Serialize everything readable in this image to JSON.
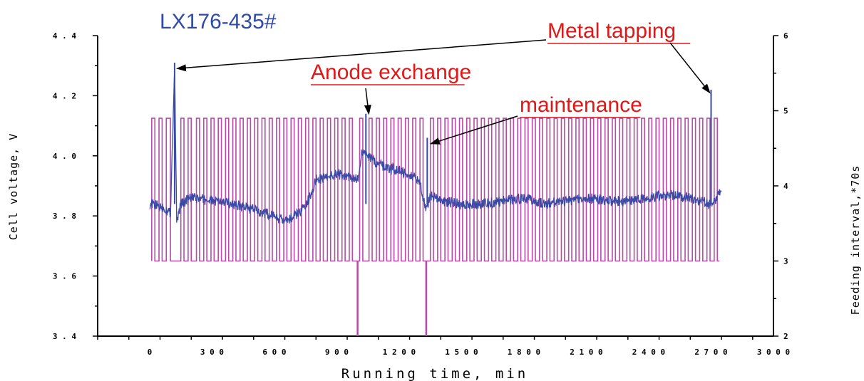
{
  "chart_data": {
    "type": "line",
    "title": "LX176-435#",
    "xlabel": "Running time, min",
    "ylabel": "Cell voltage, V",
    "y2label": "Feeding interval,*70s",
    "xlim": [
      -250,
      3000
    ],
    "ylim": [
      3.4,
      4.4
    ],
    "y2lim": [
      2,
      6
    ],
    "x_ticks": [
      "0",
      "300",
      "600",
      "900",
      "1200",
      "1500",
      "1800",
      "2100",
      "2400",
      "2700",
      "3000"
    ],
    "y_ticks": [
      "3.4",
      "3.6",
      "3.8",
      "4.0",
      "4.2",
      "4.4"
    ],
    "y2_ticks": [
      "2",
      "3",
      "4",
      "5",
      "6"
    ],
    "colors": {
      "voltage": "#3a4aa6",
      "feeding": "#b84aa8",
      "annotation": "#e01818",
      "title": "#2f4aa8"
    },
    "series": [
      {
        "name": "Cell voltage",
        "axis": "left",
        "x": [
          0,
          60,
          100,
          120,
          130,
          150,
          200,
          300,
          400,
          500,
          600,
          650,
          700,
          750,
          800,
          850,
          900,
          950,
          1000,
          1020,
          1050,
          1080,
          1100,
          1150,
          1200,
          1250,
          1300,
          1330,
          1350,
          1400,
          1500,
          1600,
          1700,
          1800,
          1900,
          2000,
          2100,
          2200,
          2300,
          2400,
          2500,
          2600,
          2700,
          2750
        ],
        "y": [
          3.84,
          3.83,
          3.81,
          4.3,
          3.78,
          3.84,
          3.86,
          3.85,
          3.84,
          3.82,
          3.8,
          3.78,
          3.8,
          3.83,
          3.92,
          3.93,
          3.94,
          3.93,
          3.92,
          4.01,
          4.0,
          3.98,
          3.97,
          3.96,
          3.95,
          3.94,
          3.91,
          3.82,
          3.87,
          3.85,
          3.84,
          3.84,
          3.85,
          3.86,
          3.84,
          3.85,
          3.86,
          3.85,
          3.85,
          3.86,
          3.87,
          3.86,
          3.84,
          3.88
        ]
      },
      {
        "name": "Feeding interval",
        "axis": "right",
        "low": 3.0,
        "high": 4.9,
        "switch_times": [
          10,
          25,
          45,
          60,
          80,
          100,
          150,
          165,
          185,
          200,
          225,
          240,
          260,
          275,
          295,
          310,
          330,
          345,
          365,
          380,
          400,
          415,
          435,
          450,
          470,
          485,
          505,
          520,
          540,
          555,
          575,
          590,
          610,
          625,
          645,
          660,
          680,
          695,
          715,
          730,
          750,
          765,
          785,
          800,
          820,
          835,
          855,
          870,
          890,
          905,
          925,
          940,
          960,
          975,
          1010,
          1025,
          1055,
          1070,
          1090,
          1105,
          1125,
          1140,
          1160,
          1175,
          1195,
          1210,
          1230,
          1245,
          1265,
          1280,
          1300,
          1315,
          1350,
          1365,
          1385,
          1400,
          1420,
          1435,
          1455,
          1470,
          1490,
          1505,
          1525,
          1540,
          1560,
          1575,
          1595,
          1610,
          1630,
          1645,
          1665,
          1680,
          1700,
          1715,
          1735,
          1750,
          1770,
          1785,
          1805,
          1820,
          1840,
          1855,
          1875,
          1890,
          1910,
          1925,
          1945,
          1960,
          1980,
          1995,
          2015,
          2030,
          2050,
          2065,
          2085,
          2100,
          2120,
          2135,
          2155,
          2170,
          2190,
          2205,
          2225,
          2240,
          2260,
          2275,
          2295,
          2310,
          2330,
          2345,
          2365,
          2380,
          2400,
          2415,
          2435,
          2450,
          2470,
          2485,
          2505,
          2520,
          2540,
          2555,
          2575,
          2590,
          2610,
          2625,
          2645,
          2660,
          2680,
          2695,
          2715,
          2730
        ],
        "dips": [
          {
            "x": 1000,
            "y": 2.0
          },
          {
            "x": 1330,
            "y": 2.0
          }
        ]
      }
    ],
    "annotations": [
      {
        "text": "Metal tapping",
        "targets": [
          {
            "x": 120,
            "y": 4.3
          },
          {
            "x": 2700,
            "y": 4.22
          }
        ]
      },
      {
        "text": "Anode exchange",
        "targets": [
          {
            "x": 1040,
            "y": 4.15
          }
        ]
      },
      {
        "text": "maintenance",
        "targets": [
          {
            "x": 1340,
            "y": 4.05
          }
        ]
      }
    ]
  }
}
